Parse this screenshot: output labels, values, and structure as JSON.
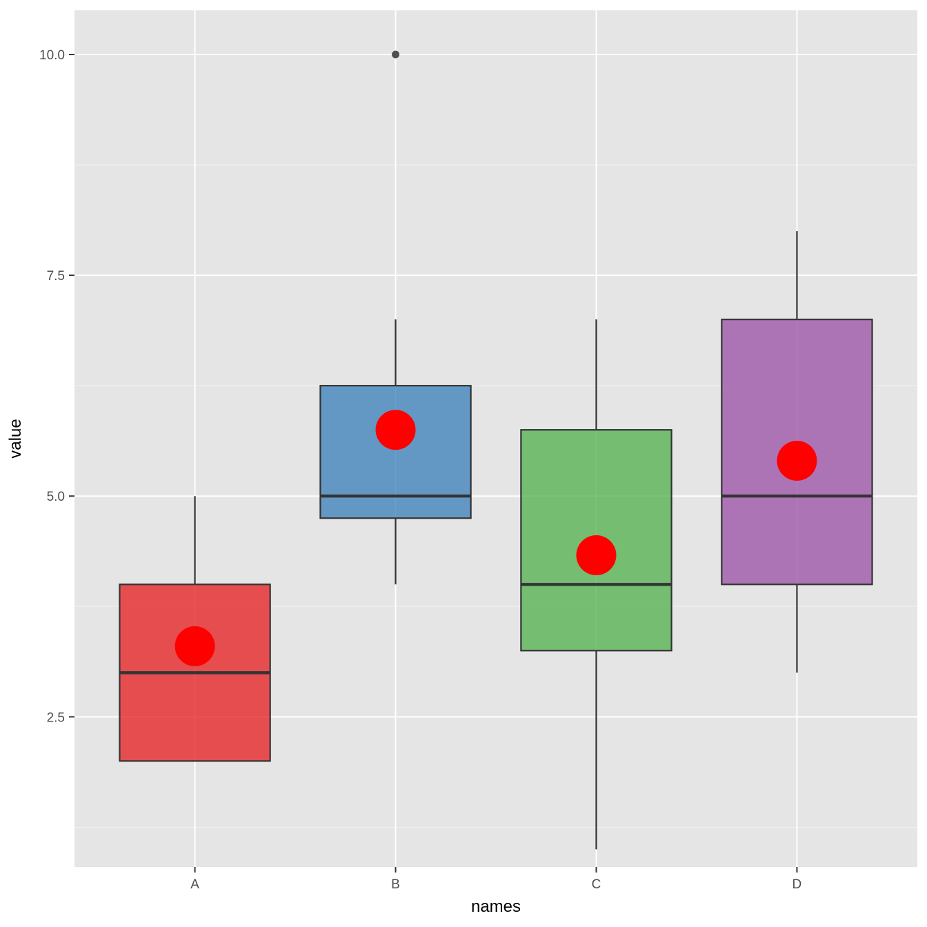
{
  "chart_data": {
    "type": "boxplot",
    "xlabel": "names",
    "ylabel": "value",
    "categories": [
      "A",
      "B",
      "C",
      "D"
    ],
    "ylim": [
      0.8,
      10.5
    ],
    "y_ticks": [
      2.5,
      5.0,
      7.5,
      10.0
    ],
    "y_tick_labels": [
      "2.5",
      "5.0",
      "7.5",
      "10.0"
    ],
    "grid": true,
    "boxes": [
      {
        "name": "A",
        "whisker_low": 2.0,
        "q1": 2.0,
        "median": 3.0,
        "q3": 4.0,
        "whisker_high": 5.0,
        "mean": 3.3,
        "outliers": [],
        "color": "#e41a1c"
      },
      {
        "name": "B",
        "whisker_low": 4.0,
        "q1": 4.75,
        "median": 5.0,
        "q3": 6.25,
        "whisker_high": 7.0,
        "mean": 5.75,
        "outliers": [
          10.0
        ],
        "color": "#377eb8"
      },
      {
        "name": "C",
        "whisker_low": 1.0,
        "q1": 3.25,
        "median": 4.0,
        "q3": 5.75,
        "whisker_high": 7.0,
        "mean": 4.33,
        "outliers": [],
        "color": "#4daf4a"
      },
      {
        "name": "D",
        "whisker_low": 3.0,
        "q1": 4.0,
        "median": 5.0,
        "q3": 7.0,
        "whisker_high": 8.0,
        "mean": 5.4,
        "outliers": [],
        "color": "#984ea3"
      }
    ],
    "mean_marker_color": "#ff0000",
    "panel_background": "#e5e5e5"
  }
}
